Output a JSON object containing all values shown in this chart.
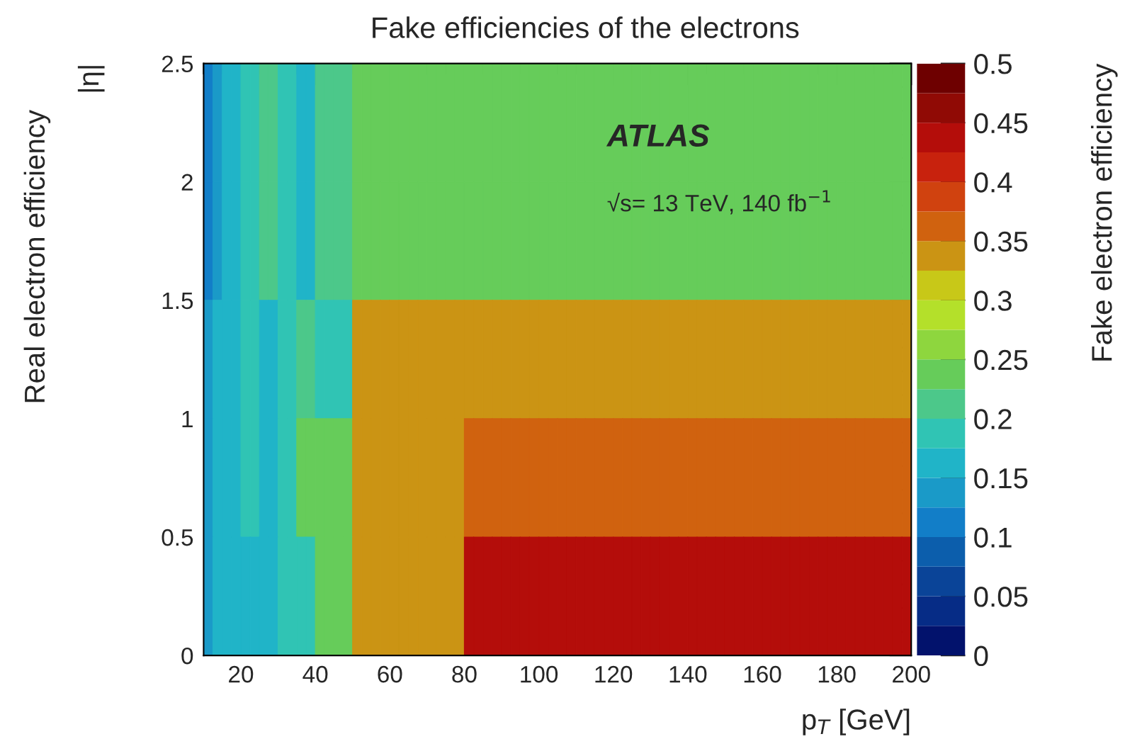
{
  "chart_data": {
    "type": "heatmap",
    "title": "Fake efficiencies of the electrons",
    "xlabel": "p$_{T}$ [GeV]",
    "ylabel": "|η|",
    "clabel": "Fake electron efficiency",
    "annotations": [
      "ATLAS",
      "√s= 13 TeV, 140 fb$^{−1}$",
      "Real electron efficiency"
    ],
    "cells": [
      [
        0.11,
        0.13,
        0.16,
        0.16,
        0.19,
        0.19,
        0.21,
        0.21,
        0.19,
        0.19,
        0.16,
        0.16,
        0.21,
        0.21,
        0.21,
        0.21,
        0.24,
        0.24,
        0.24,
        0.24,
        0.24,
        0.24,
        0.24,
        0.24,
        0.24,
        0.24,
        0.24,
        0.24,
        0.24,
        0.24,
        0.24,
        0.24,
        0.24,
        0.24,
        0.24,
        0.24,
        0.24,
        0.24,
        0.24,
        0.24,
        0.24,
        0.24,
        0.24,
        0.24,
        0.24,
        0.24,
        0.24,
        0.24,
        0.24,
        0.24,
        0.24,
        0.24,
        0.24,
        0.24,
        0.24,
        0.24,
        0.24,
        0.24,
        0.24,
        0.24,
        0.24,
        0.24,
        0.24,
        0.24,
        0.24,
        0.24,
        0.24,
        0.24,
        0.24,
        0.24,
        0.24,
        0.24,
        0.24,
        0.24,
        0.24,
        0.24
      ],
      [
        0.11,
        0.13,
        0.16,
        0.16,
        0.19,
        0.19,
        0.21,
        0.21,
        0.19,
        0.19,
        0.16,
        0.16,
        0.21,
        0.21,
        0.21,
        0.21,
        0.24,
        0.24,
        0.24,
        0.24,
        0.24,
        0.24,
        0.24,
        0.24,
        0.24,
        0.24,
        0.24,
        0.24,
        0.24,
        0.24,
        0.24,
        0.24,
        0.24,
        0.24,
        0.24,
        0.24,
        0.24,
        0.24,
        0.24,
        0.24,
        0.24,
        0.24,
        0.24,
        0.24,
        0.24,
        0.24,
        0.24,
        0.24,
        0.24,
        0.24,
        0.24,
        0.24,
        0.24,
        0.24,
        0.24,
        0.24,
        0.24,
        0.24,
        0.24,
        0.24,
        0.24,
        0.24,
        0.24,
        0.24,
        0.24,
        0.24,
        0.24,
        0.24,
        0.24,
        0.24,
        0.24,
        0.24,
        0.24,
        0.24,
        0.24,
        0.24
      ],
      [
        0.13,
        0.16,
        0.16,
        0.16,
        0.19,
        0.19,
        0.16,
        0.16,
        0.19,
        0.19,
        0.21,
        0.21,
        0.19,
        0.19,
        0.19,
        0.19,
        0.34,
        0.34,
        0.34,
        0.34,
        0.34,
        0.34,
        0.34,
        0.34,
        0.34,
        0.34,
        0.34,
        0.34,
        0.34,
        0.34,
        0.34,
        0.34,
        0.34,
        0.34,
        0.34,
        0.34,
        0.34,
        0.34,
        0.34,
        0.34,
        0.34,
        0.34,
        0.34,
        0.34,
        0.34,
        0.34,
        0.34,
        0.34,
        0.34,
        0.34,
        0.34,
        0.34,
        0.34,
        0.34,
        0.34,
        0.34,
        0.34,
        0.34,
        0.34,
        0.34,
        0.34,
        0.34,
        0.34,
        0.34,
        0.34,
        0.34,
        0.34,
        0.34,
        0.34,
        0.34,
        0.34,
        0.34,
        0.34,
        0.34,
        0.34,
        0.34
      ],
      [
        0.13,
        0.16,
        0.16,
        0.16,
        0.19,
        0.19,
        0.16,
        0.16,
        0.19,
        0.19,
        0.24,
        0.24,
        0.24,
        0.24,
        0.24,
        0.24,
        0.34,
        0.34,
        0.34,
        0.34,
        0.34,
        0.34,
        0.34,
        0.34,
        0.34,
        0.34,
        0.34,
        0.34,
        0.36,
        0.36,
        0.36,
        0.36,
        0.36,
        0.36,
        0.36,
        0.36,
        0.36,
        0.36,
        0.36,
        0.36,
        0.36,
        0.36,
        0.36,
        0.36,
        0.36,
        0.36,
        0.36,
        0.36,
        0.36,
        0.36,
        0.36,
        0.36,
        0.36,
        0.36,
        0.36,
        0.36,
        0.36,
        0.36,
        0.36,
        0.36,
        0.36,
        0.36,
        0.36,
        0.36,
        0.36,
        0.36,
        0.36,
        0.36,
        0.36,
        0.36,
        0.36,
        0.36,
        0.36,
        0.36,
        0.36,
        0.36
      ],
      [
        0.13,
        0.16,
        0.16,
        0.16,
        0.16,
        0.16,
        0.16,
        0.16,
        0.19,
        0.19,
        0.19,
        0.19,
        0.24,
        0.24,
        0.24,
        0.24,
        0.34,
        0.34,
        0.34,
        0.34,
        0.34,
        0.34,
        0.34,
        0.34,
        0.34,
        0.34,
        0.34,
        0.34,
        0.44,
        0.44,
        0.44,
        0.44,
        0.44,
        0.44,
        0.44,
        0.44,
        0.44,
        0.44,
        0.44,
        0.44,
        0.44,
        0.44,
        0.44,
        0.44,
        0.44,
        0.44,
        0.44,
        0.44,
        0.44,
        0.44,
        0.44,
        0.44,
        0.44,
        0.44,
        0.44,
        0.44,
        0.44,
        0.44,
        0.44,
        0.44,
        0.44,
        0.44,
        0.44,
        0.44,
        0.44,
        0.44,
        0.44,
        0.44,
        0.44,
        0.44,
        0.44,
        0.44,
        0.44,
        0.44,
        0.44,
        0.44
      ]
    ],
    "colors": [
      "#02126c",
      "#062c86",
      "#0a4498",
      "#0c5eac",
      "#127ec8",
      "#1a9ac8",
      "#20b4c8",
      "#30c4b4",
      "#4cc88a",
      "#66cc5a",
      "#8ed63e",
      "#b4e02a",
      "#c8c818",
      "#cb9414",
      "#d0620f",
      "#d0420f",
      "#c8220d",
      "#b40d0a",
      "#900a05",
      "#6e0000"
    ],
    "xlim": [
      10,
      200
    ],
    "xticks": [
      20,
      40,
      60,
      80,
      100,
      120,
      140,
      160,
      180,
      200
    ],
    "ylim": [
      0,
      2.5
    ],
    "yticks": [
      0,
      0.5,
      1,
      1.5,
      2,
      2.5
    ],
    "clim": [
      0,
      0.5
    ],
    "cticks": [
      0,
      0.05,
      0.1,
      0.15,
      0.2,
      0.25,
      0.3,
      0.35,
      0.4,
      0.45,
      0.5
    ]
  }
}
